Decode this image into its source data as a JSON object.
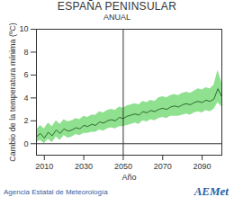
{
  "chart_data": {
    "type": "line",
    "title": "ESPAÑA PENINSULAR",
    "subtitle": "ANUAL",
    "x_label": "Año",
    "y_label": "Cambio de la temperatura mínima (ºC)",
    "source": "Agencia Estatal de Meteorología",
    "logo": "AEMet",
    "x": [
      2006,
      2008,
      2010,
      2012,
      2014,
      2016,
      2018,
      2020,
      2022,
      2024,
      2026,
      2028,
      2030,
      2032,
      2034,
      2036,
      2038,
      2040,
      2042,
      2044,
      2046,
      2048,
      2050,
      2052,
      2054,
      2056,
      2058,
      2060,
      2062,
      2064,
      2066,
      2068,
      2070,
      2072,
      2074,
      2076,
      2078,
      2080,
      2082,
      2084,
      2086,
      2088,
      2090,
      2092,
      2094,
      2096,
      2098,
      2100
    ],
    "series": [
      {
        "type": "area",
        "color": "#8fe08f",
        "lower": [
          0.1,
          0.3,
          0.0,
          0.4,
          0.1,
          0.6,
          0.3,
          0.7,
          0.5,
          0.6,
          0.8,
          0.7,
          0.9,
          0.9,
          1.0,
          1.0,
          1.2,
          1.1,
          1.3,
          1.4,
          1.3,
          1.5,
          1.5,
          1.6,
          1.7,
          1.8,
          1.7,
          2.0,
          1.9,
          2.1,
          2.0,
          2.2,
          2.3,
          2.2,
          2.4,
          2.4,
          2.4,
          2.5,
          2.6,
          2.5,
          2.7,
          2.8,
          2.7,
          2.9,
          2.8,
          3.0,
          3.6,
          3.2
        ],
        "upper": [
          1.2,
          1.6,
          1.3,
          1.8,
          1.5,
          2.0,
          1.7,
          2.1,
          1.9,
          2.0,
          2.2,
          2.1,
          2.4,
          2.3,
          2.5,
          2.5,
          2.8,
          2.7,
          2.9,
          3.0,
          2.9,
          3.2,
          3.1,
          3.3,
          3.4,
          3.5,
          3.4,
          3.7,
          3.6,
          3.8,
          3.7,
          4.0,
          4.1,
          4.0,
          4.2,
          4.3,
          4.2,
          4.4,
          4.5,
          4.4,
          4.6,
          4.8,
          4.7,
          4.9,
          4.8,
          5.1,
          6.4,
          5.3
        ]
      },
      {
        "type": "line",
        "color": "#2e6b2e",
        "values": [
          0.6,
          0.9,
          0.5,
          1.0,
          0.7,
          1.2,
          0.9,
          1.3,
          1.1,
          1.2,
          1.4,
          1.3,
          1.6,
          1.5,
          1.7,
          1.6,
          1.9,
          1.8,
          2.0,
          2.1,
          2.0,
          2.3,
          2.2,
          2.4,
          2.5,
          2.6,
          2.5,
          2.8,
          2.7,
          2.9,
          2.8,
          3.0,
          3.1,
          3.0,
          3.2,
          3.3,
          3.2,
          3.4,
          3.5,
          3.4,
          3.6,
          3.7,
          3.6,
          3.8,
          3.7,
          3.9,
          4.8,
          4.1
        ]
      }
    ],
    "reference_lines": {
      "x": [
        2050
      ],
      "y": [
        0
      ]
    },
    "xlim": [
      2006,
      2100
    ],
    "xticks": [
      2010,
      2030,
      2050,
      2070,
      2090
    ],
    "ylim": [
      -1,
      10
    ],
    "yticks": [
      0,
      2,
      4,
      6,
      8,
      10
    ],
    "grid": false
  }
}
